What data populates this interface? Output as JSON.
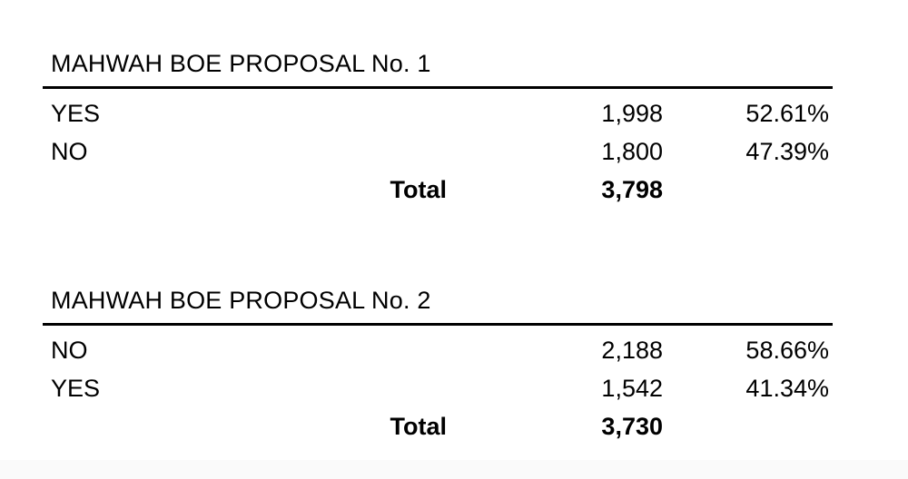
{
  "page": {
    "background_color": "#ffffff",
    "text_color": "#000000",
    "rule_color": "#000000",
    "footer_strip_color": "#fafafa"
  },
  "tables": [
    {
      "title": "MAHWAH BOE PROPOSAL No. 1",
      "rows": [
        {
          "label": "YES",
          "count": "1,998",
          "percent": "52.61%"
        },
        {
          "label": "NO",
          "count": "1,800",
          "percent": "47.39%"
        }
      ],
      "total_label": "Total",
      "total_count": "3,798"
    },
    {
      "title": "MAHWAH BOE PROPOSAL No. 2",
      "rows": [
        {
          "label": "NO",
          "count": "2,188",
          "percent": "58.66%"
        },
        {
          "label": "YES",
          "count": "1,542",
          "percent": "41.34%"
        }
      ],
      "total_label": "Total",
      "total_count": "3,730"
    }
  ]
}
